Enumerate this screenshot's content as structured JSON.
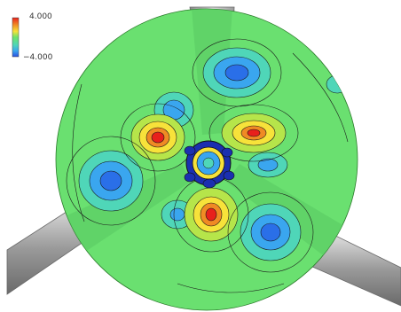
{
  "colorbar": {
    "max_label": "4.000",
    "min_label": "−4.000",
    "colors": [
      "#e8201c",
      "#f08a24",
      "#f7e23a",
      "#b6e54a",
      "#6ee36a",
      "#4fd6b8",
      "#3aa6ef",
      "#2a4fe0"
    ]
  },
  "plot": {
    "background_color": "#6ae070",
    "blade_color": "#b8b8b8",
    "hub_color": "#1b2fb0",
    "contour_line_color": "#1a1a1a"
  }
}
